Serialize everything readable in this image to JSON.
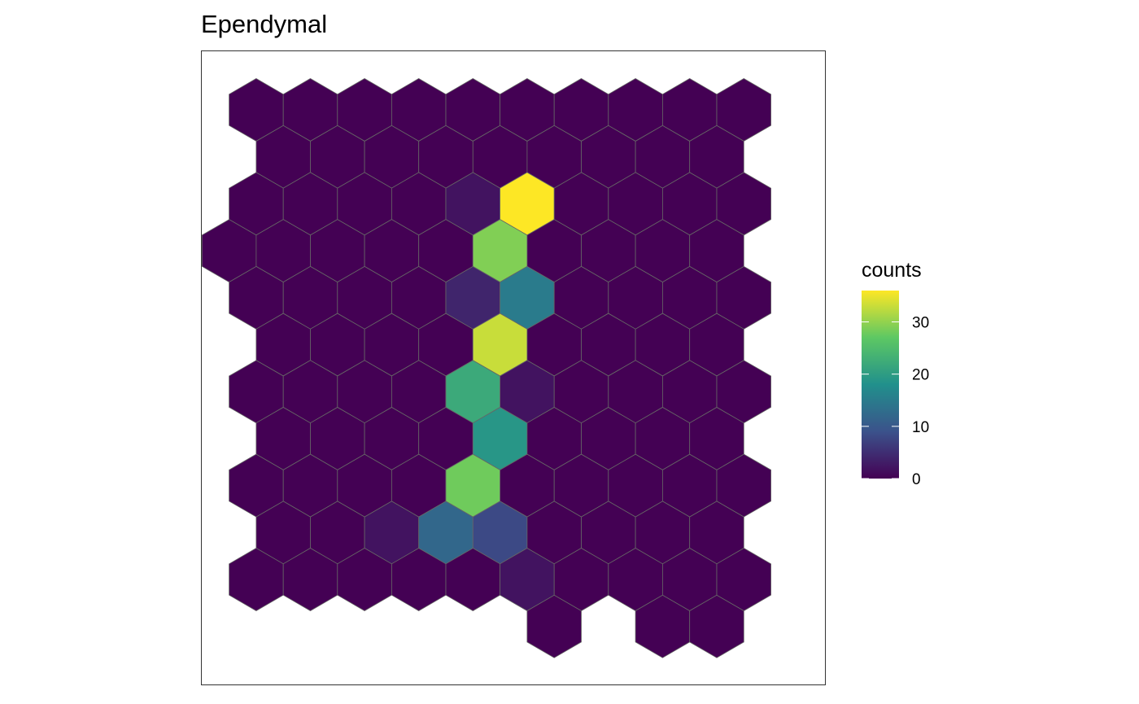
{
  "chart_data": {
    "type": "heatmap",
    "title": "Ependymal",
    "xlabel": "",
    "ylabel": "",
    "grid": false,
    "legend": {
      "title": "counts",
      "position": "right",
      "min": 0,
      "max": 36,
      "ticks": [
        0,
        10,
        20,
        30
      ]
    },
    "colormap": [
      "#440154",
      "#3b528b",
      "#21908c",
      "#5dc863",
      "#fde725"
    ],
    "hex_cell_edge_color": "#666666",
    "rows": [
      {
        "offset": 0,
        "start": 1,
        "values": [
          0,
          0,
          0,
          0,
          0,
          0,
          0,
          0,
          0,
          0
        ]
      },
      {
        "offset": 0.5,
        "start": 1,
        "values": [
          0,
          0,
          0,
          0,
          0,
          0,
          0,
          0,
          0
        ]
      },
      {
        "offset": 0,
        "start": 1,
        "values": [
          0,
          0,
          0,
          0,
          2,
          36,
          0,
          0,
          0,
          0
        ]
      },
      {
        "offset": 0.5,
        "start": 0,
        "values": [
          0,
          0,
          0,
          0,
          0,
          29,
          0,
          0,
          0,
          0
        ]
      },
      {
        "offset": 0,
        "start": 1,
        "values": [
          0,
          0,
          0,
          0,
          4,
          15,
          0,
          0,
          0,
          0
        ]
      },
      {
        "offset": 0.5,
        "start": 1,
        "values": [
          0,
          0,
          0,
          0,
          33,
          0,
          0,
          0,
          0
        ]
      },
      {
        "offset": 0,
        "start": 1,
        "values": [
          0,
          0,
          0,
          0,
          22,
          2,
          0,
          0,
          0,
          0
        ]
      },
      {
        "offset": 0.5,
        "start": 1,
        "values": [
          0,
          0,
          0,
          0,
          19,
          0,
          0,
          0,
          0
        ]
      },
      {
        "offset": 0,
        "start": 1,
        "values": [
          0,
          0,
          0,
          0,
          28,
          0,
          0,
          0,
          0,
          0
        ]
      },
      {
        "offset": 0.5,
        "start": 1,
        "values": [
          0,
          0,
          2,
          12,
          8,
          0,
          0,
          0,
          0
        ]
      },
      {
        "offset": 0,
        "start": 1,
        "values": [
          0,
          0,
          0,
          0,
          0,
          2,
          0,
          0,
          0,
          0
        ]
      },
      {
        "offset": 0.5,
        "start": 6,
        "values": [
          0,
          null,
          0,
          0
        ]
      }
    ]
  }
}
